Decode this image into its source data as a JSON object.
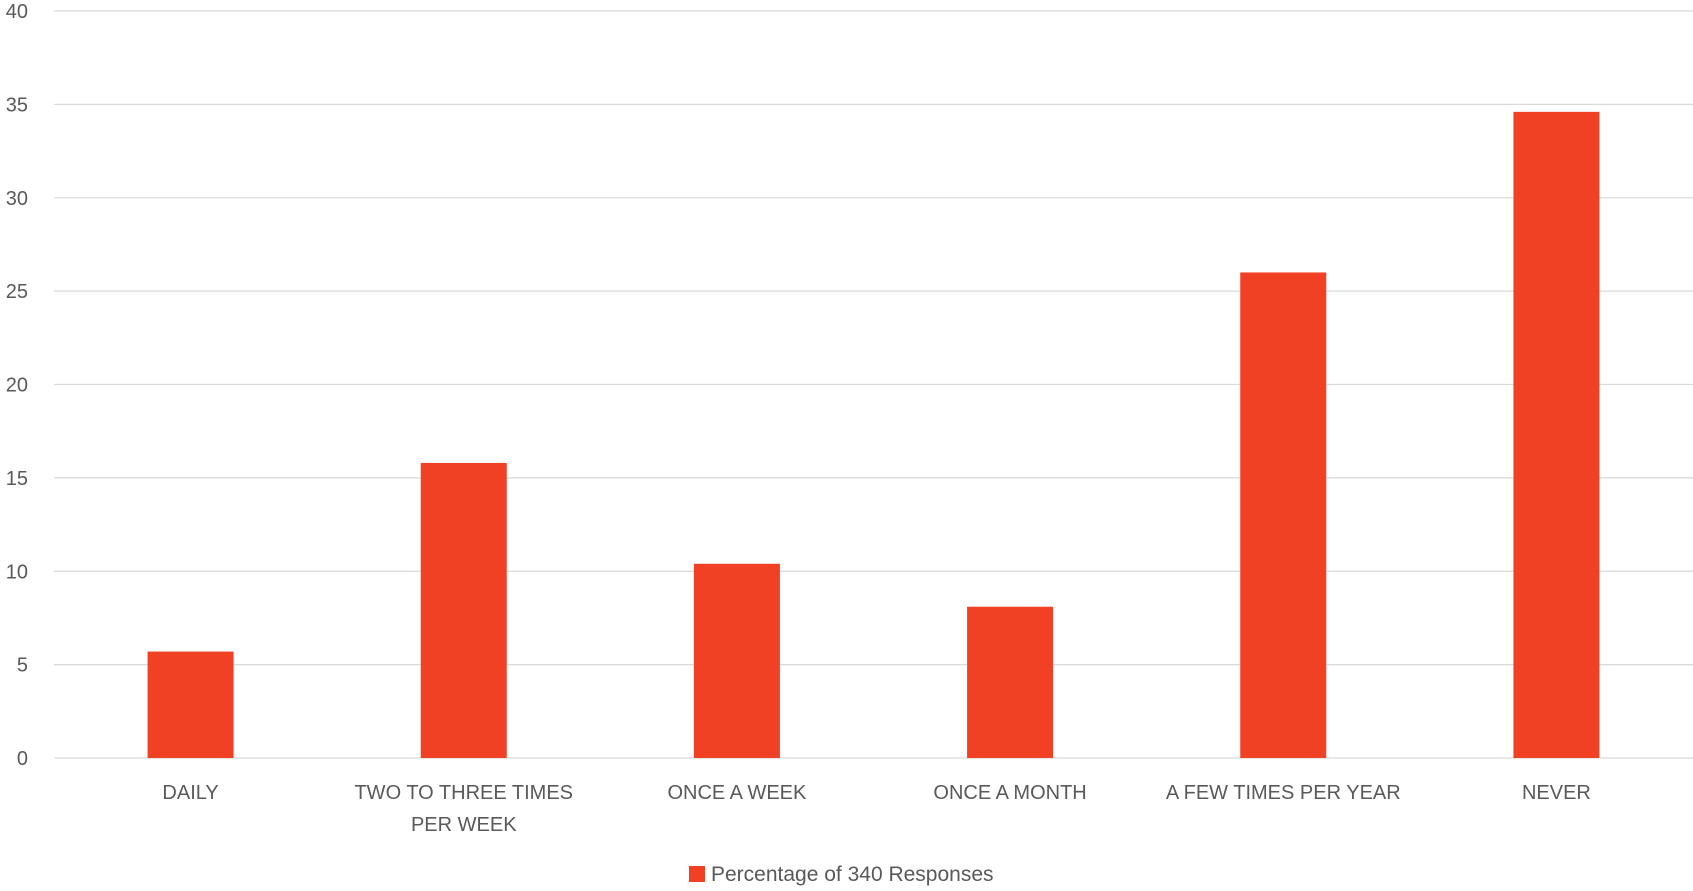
{
  "chart_data": {
    "type": "bar",
    "title": "",
    "xlabel": "",
    "ylabel": "",
    "categories": [
      "DAILY",
      "TWO TO THREE TIMES PER WEEK",
      "ONCE A WEEK",
      "ONCE A MONTH",
      "A FEW TIMES PER YEAR",
      "NEVER"
    ],
    "category_label_lines": [
      [
        "DAILY"
      ],
      [
        "TWO TO THREE TIMES",
        "PER WEEK"
      ],
      [
        "ONCE A WEEK"
      ],
      [
        "ONCE A MONTH"
      ],
      [
        "A FEW TIMES PER YEAR"
      ],
      [
        "NEVER"
      ]
    ],
    "series": [
      {
        "name": "Percentage of 340 Responses",
        "values": [
          5.7,
          15.8,
          10.4,
          8.1,
          26.0,
          34.6
        ]
      }
    ],
    "ylim": [
      0,
      40
    ],
    "yticks": [
      "0",
      "5",
      "10",
      "15",
      "20",
      "25",
      "30",
      "35",
      "40"
    ],
    "grid": true,
    "legend_position": "bottom",
    "colors": {
      "bar": "#f04125",
      "grid": "#d9d9d9",
      "text": "#595959"
    }
  }
}
